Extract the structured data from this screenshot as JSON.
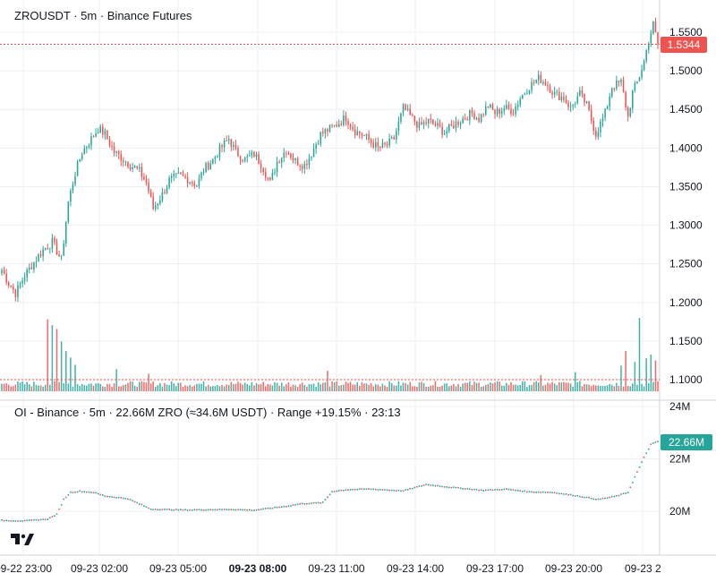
{
  "price_pane": {
    "title": "ZROUSDT · 5m · Binance Futures",
    "last_price_label": "1.5344",
    "colors": {
      "up": "#26a69a",
      "down": "#ef5350",
      "grid": "#eceff3",
      "badge": "#ef5350"
    }
  },
  "oi_pane": {
    "title": "OI - Binance · 5m · 22.66M ZRO (≈34.6M USDT) · Range +19.15% · 23:13",
    "last_value_label": "22.66M",
    "colors": {
      "line": "#26a69a",
      "badge": "#26a69a"
    }
  },
  "logo": {
    "text": "TV"
  },
  "chart_data": [
    {
      "type": "candlestick",
      "title": "ZROUSDT · 5m · Binance Futures",
      "x_ticks": [
        "09-22 23:00",
        "09-23 02:00",
        "09-23 05:00",
        "09-23 08:00",
        "09-23 11:00",
        "09-23 14:00",
        "09-23 17:00",
        "09-23 20:00",
        "09-23 2"
      ],
      "x_tick_bold": "09-23 08:00",
      "y_ticks": [
        "1.5500",
        "1.5000",
        "1.4500",
        "1.4000",
        "1.3500",
        "1.3000",
        "1.2500",
        "1.2000",
        "1.1500",
        "1.1000"
      ],
      "ylim": [
        1.08,
        1.565
      ],
      "last_price": 1.5344,
      "close_path": [
        [
          0,
          1.242
        ],
        [
          3,
          1.225
        ],
        [
          6,
          1.212
        ],
        [
          10,
          1.235
        ],
        [
          14,
          1.252
        ],
        [
          18,
          1.268
        ],
        [
          22,
          1.278
        ],
        [
          26,
          1.255
        ],
        [
          29,
          1.33
        ],
        [
          32,
          1.368
        ],
        [
          35,
          1.395
        ],
        [
          39,
          1.412
        ],
        [
          42,
          1.425
        ],
        [
          45,
          1.418
        ],
        [
          49,
          1.395
        ],
        [
          52,
          1.388
        ],
        [
          56,
          1.378
        ],
        [
          60,
          1.37
        ],
        [
          63,
          1.355
        ],
        [
          66,
          1.322
        ],
        [
          70,
          1.34
        ],
        [
          73,
          1.358
        ],
        [
          77,
          1.364
        ],
        [
          81,
          1.36
        ],
        [
          85,
          1.352
        ],
        [
          88,
          1.372
        ],
        [
          92,
          1.385
        ],
        [
          96,
          1.402
        ],
        [
          99,
          1.412
        ],
        [
          102,
          1.395
        ],
        [
          106,
          1.385
        ],
        [
          110,
          1.392
        ],
        [
          113,
          1.38
        ],
        [
          117,
          1.355
        ],
        [
          120,
          1.382
        ],
        [
          124,
          1.398
        ],
        [
          128,
          1.383
        ],
        [
          132,
          1.378
        ],
        [
          135,
          1.393
        ],
        [
          139,
          1.418
        ],
        [
          143,
          1.425
        ],
        [
          146,
          1.43
        ],
        [
          150,
          1.44
        ],
        [
          154,
          1.422
        ],
        [
          157,
          1.418
        ],
        [
          161,
          1.408
        ],
        [
          164,
          1.4
        ],
        [
          168,
          1.404
        ],
        [
          171,
          1.412
        ],
        [
          175,
          1.452
        ],
        [
          179,
          1.438
        ],
        [
          182,
          1.428
        ],
        [
          186,
          1.435
        ],
        [
          190,
          1.428
        ],
        [
          193,
          1.42
        ],
        [
          197,
          1.43
        ],
        [
          201,
          1.438
        ],
        [
          205,
          1.445
        ],
        [
          208,
          1.438
        ],
        [
          212,
          1.455
        ],
        [
          215,
          1.445
        ],
        [
          219,
          1.452
        ],
        [
          223,
          1.448
        ],
        [
          226,
          1.465
        ],
        [
          230,
          1.48
        ],
        [
          234,
          1.49
        ],
        [
          237,
          1.485
        ],
        [
          241,
          1.47
        ],
        [
          245,
          1.465
        ],
        [
          248,
          1.452
        ],
        [
          252,
          1.47
        ],
        [
          255,
          1.455
        ],
        [
          259,
          1.418
        ],
        [
          263,
          1.445
        ],
        [
          266,
          1.48
        ],
        [
          270,
          1.485
        ],
        [
          273,
          1.44
        ],
        [
          275,
          1.472
        ],
        [
          277,
          1.485
        ],
        [
          280,
          1.512
        ],
        [
          282,
          1.54
        ],
        [
          284,
          1.56
        ],
        [
          286,
          1.534
        ]
      ]
    },
    {
      "type": "line",
      "title": "OI - Binance · 5m · 22.66M ZRO (≈34.6M USDT) · Range +19.15% · 23:13",
      "y_ticks": [
        "24M",
        "22M",
        "20M"
      ],
      "ylim": [
        18.8,
        24.0
      ],
      "last_value": 22.66,
      "points": [
        [
          0,
          19.65
        ],
        [
          10,
          19.63
        ],
        [
          20,
          19.7
        ],
        [
          24,
          19.88
        ],
        [
          27,
          20.45
        ],
        [
          30,
          20.72
        ],
        [
          34,
          20.76
        ],
        [
          40,
          20.72
        ],
        [
          45,
          20.58
        ],
        [
          55,
          20.48
        ],
        [
          65,
          20.08
        ],
        [
          80,
          20.05
        ],
        [
          100,
          20.07
        ],
        [
          110,
          20.04
        ],
        [
          125,
          20.2
        ],
        [
          130,
          20.28
        ],
        [
          140,
          20.33
        ],
        [
          144,
          20.75
        ],
        [
          150,
          20.82
        ],
        [
          160,
          20.85
        ],
        [
          175,
          20.78
        ],
        [
          185,
          21.02
        ],
        [
          195,
          20.92
        ],
        [
          210,
          20.8
        ],
        [
          220,
          20.84
        ],
        [
          230,
          20.74
        ],
        [
          240,
          20.72
        ],
        [
          250,
          20.6
        ],
        [
          260,
          20.45
        ],
        [
          268,
          20.58
        ],
        [
          273,
          20.72
        ],
        [
          277,
          21.5
        ],
        [
          280,
          22.05
        ],
        [
          283,
          22.55
        ],
        [
          286,
          22.66
        ]
      ]
    },
    {
      "type": "bar",
      "title": "",
      "note": "volume",
      "spikes": [
        [
          20,
          0.98
        ],
        [
          22,
          0.9
        ],
        [
          24,
          0.85
        ],
        [
          26,
          0.68
        ],
        [
          28,
          0.55
        ],
        [
          30,
          0.46
        ],
        [
          32,
          0.36
        ],
        [
          50,
          0.3
        ],
        [
          64,
          0.24
        ],
        [
          142,
          0.28
        ],
        [
          235,
          0.22
        ],
        [
          250,
          0.26
        ],
        [
          270,
          0.35
        ],
        [
          272,
          0.55
        ],
        [
          276,
          0.4
        ],
        [
          278,
          1.0
        ],
        [
          281,
          0.45
        ],
        [
          283,
          0.5
        ],
        [
          285,
          0.42
        ]
      ]
    }
  ]
}
